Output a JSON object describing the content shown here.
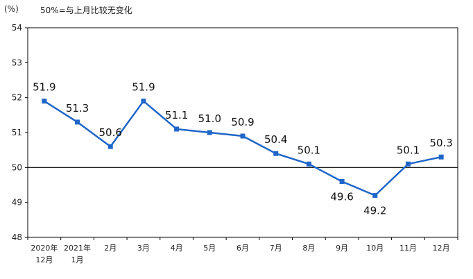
{
  "header": {
    "unit": "(%)",
    "note": "50%=与上月比较无变化"
  },
  "chart_data": {
    "type": "line",
    "title": "",
    "xlabel": "",
    "ylabel": "(%)",
    "ylim": [
      48,
      54
    ],
    "yticks": [
      48,
      49,
      50,
      51,
      52,
      53,
      54
    ],
    "reference_line": 50,
    "grid": false,
    "legend": "none",
    "categories": [
      {
        "line1": "2020年",
        "line2": "12月"
      },
      {
        "line1": "2021年",
        "line2": "1月"
      },
      {
        "line1": "2月",
        "line2": ""
      },
      {
        "line1": "3月",
        "line2": ""
      },
      {
        "line1": "4月",
        "line2": ""
      },
      {
        "line1": "5月",
        "line2": ""
      },
      {
        "line1": "6月",
        "line2": ""
      },
      {
        "line1": "7月",
        "line2": ""
      },
      {
        "line1": "8月",
        "line2": ""
      },
      {
        "line1": "9月",
        "line2": ""
      },
      {
        "line1": "10月",
        "line2": ""
      },
      {
        "line1": "11月",
        "line2": ""
      },
      {
        "line1": "12月",
        "line2": ""
      }
    ],
    "series": [
      {
        "color": "#1f66c8",
        "values": [
          51.9,
          51.3,
          50.6,
          51.9,
          51.1,
          51.0,
          50.9,
          50.4,
          50.1,
          49.6,
          49.2,
          50.1,
          50.3
        ],
        "labels": [
          "51.9",
          "51.3",
          "50.6",
          "51.9",
          "51.1",
          "51.0",
          "50.9",
          "50.4",
          "50.1",
          "49.6",
          "49.2",
          "50.1",
          "50.3"
        ],
        "label_position": [
          "above",
          "above",
          "above",
          "above",
          "above",
          "above",
          "above",
          "above",
          "above",
          "below",
          "below",
          "above",
          "above"
        ]
      }
    ]
  }
}
